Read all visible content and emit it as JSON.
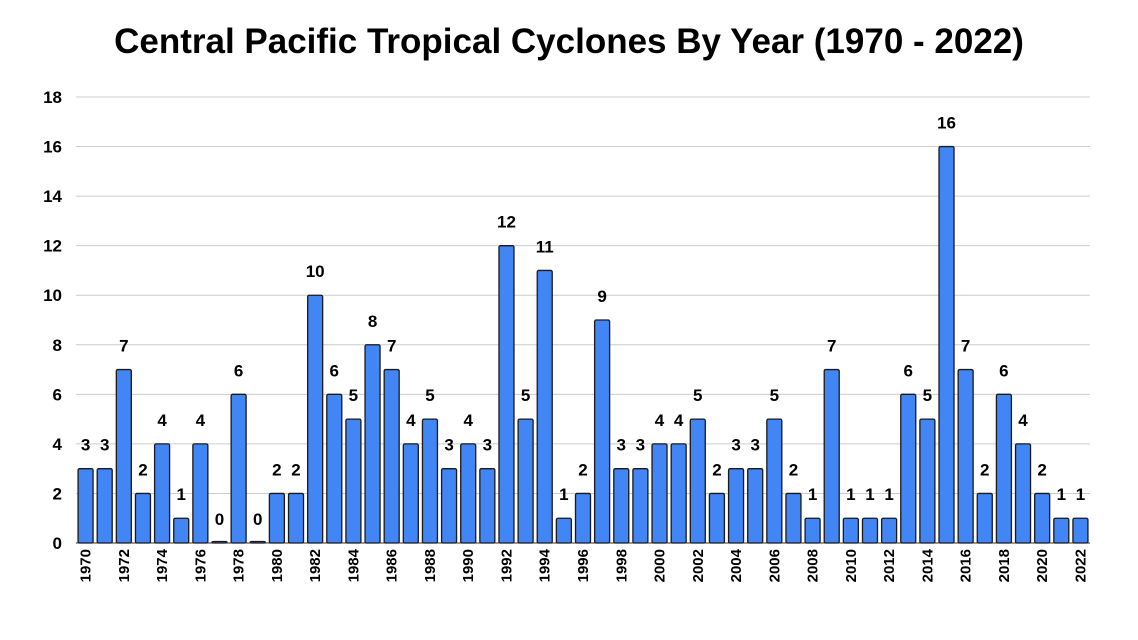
{
  "chart_data": {
    "type": "bar",
    "title": "Central Pacific Tropical Cyclones By Year (1970 - 2022)",
    "xlabel": "",
    "ylabel": "",
    "ylim": [
      0,
      18
    ],
    "yticks": [
      0,
      2,
      4,
      6,
      8,
      10,
      12,
      14,
      16,
      18
    ],
    "grid": true,
    "bar_color": "#4285f4",
    "categories": [
      "1970",
      "1971",
      "1972",
      "1973",
      "1974",
      "1975",
      "1976",
      "1977",
      "1978",
      "1979",
      "1980",
      "1981",
      "1982",
      "1983",
      "1984",
      "1985",
      "1986",
      "1987",
      "1988",
      "1989",
      "1990",
      "1991",
      "1992",
      "1993",
      "1994",
      "1995",
      "1996",
      "1997",
      "1998",
      "1999",
      "2000",
      "2001",
      "2002",
      "2003",
      "2004",
      "2005",
      "2006",
      "2007",
      "2008",
      "2009",
      "2010",
      "2011",
      "2012",
      "2013",
      "2014",
      "2015",
      "2016",
      "2017",
      "2018",
      "2019",
      "2020",
      "2021",
      "2022"
    ],
    "values": [
      3,
      3,
      7,
      2,
      4,
      1,
      4,
      0,
      6,
      0,
      2,
      2,
      10,
      6,
      5,
      8,
      7,
      4,
      5,
      3,
      4,
      3,
      12,
      5,
      11,
      1,
      2,
      9,
      3,
      3,
      4,
      4,
      5,
      2,
      3,
      3,
      5,
      2,
      1,
      7,
      1,
      1,
      1,
      6,
      5,
      16,
      7,
      2,
      6,
      4,
      2,
      1,
      1
    ]
  }
}
